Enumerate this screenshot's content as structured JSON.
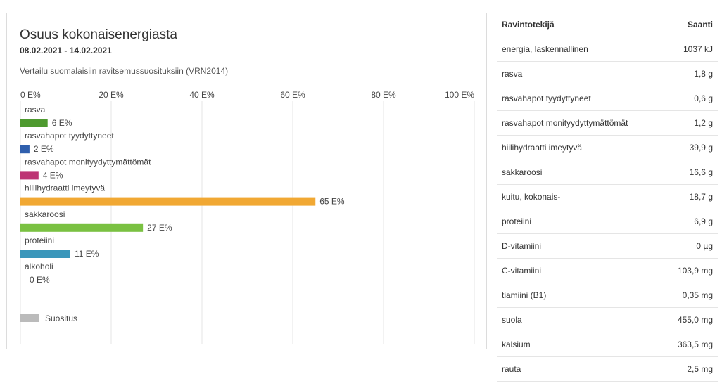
{
  "panel": {
    "title": "Osuus kokonaisenergiasta",
    "date_range": "08.02.2021 - 14.02.2021",
    "subtitle": "Vertailu suomalaisiin ravitsemussuosituksiin (VRN2014)"
  },
  "chart_data": {
    "type": "bar",
    "orientation": "horizontal",
    "xlim": [
      0,
      100
    ],
    "x_ticks": [
      0,
      20,
      40,
      60,
      80,
      100
    ],
    "tick_suffix": " E%",
    "categories": [
      "rasva",
      "rasvahapot tyydyttyneet",
      "rasvahapot monityydyttymättömät",
      "hiilihydraatti imeytyvä",
      "sakkaroosi",
      "proteiini",
      "alkoholi"
    ],
    "values": [
      6,
      2,
      4,
      65,
      27,
      11,
      0
    ],
    "value_labels": [
      "6 E%",
      "2 E%",
      "4 E%",
      "65 E%",
      "27 E%",
      "11 E%",
      "0 E%"
    ],
    "colors": [
      "#4e9a2f",
      "#2f5fad",
      "#bd3474",
      "#f1a833",
      "#7ac142",
      "#3b97bb",
      "#888888"
    ],
    "legend": [
      {
        "label": "Suositus",
        "color": "#bbbbbb"
      }
    ],
    "legend_position": "bottom-left",
    "grid": true
  },
  "table": {
    "headers": [
      "Ravintotekijä",
      "Saanti"
    ],
    "rows": [
      [
        "energia, laskennallinen",
        "1037 kJ"
      ],
      [
        "rasva",
        "1,8 g"
      ],
      [
        "rasvahapot tyydyttyneet",
        "0,6 g"
      ],
      [
        "rasvahapot monityydyttymättömät",
        "1,2 g"
      ],
      [
        "hiilihydraatti imeytyvä",
        "39,9 g"
      ],
      [
        "sakkaroosi",
        "16,6 g"
      ],
      [
        "kuitu, kokonais-",
        "18,7 g"
      ],
      [
        "proteiini",
        "6,9 g"
      ],
      [
        "D-vitamiini",
        "0 µg"
      ],
      [
        "C-vitamiini",
        "103,9 mg"
      ],
      [
        "tiamiini (B1)",
        "0,35 mg"
      ],
      [
        "suola",
        "455,0 mg"
      ],
      [
        "kalsium",
        "363,5 mg"
      ],
      [
        "rauta",
        "2,5 mg"
      ]
    ]
  }
}
